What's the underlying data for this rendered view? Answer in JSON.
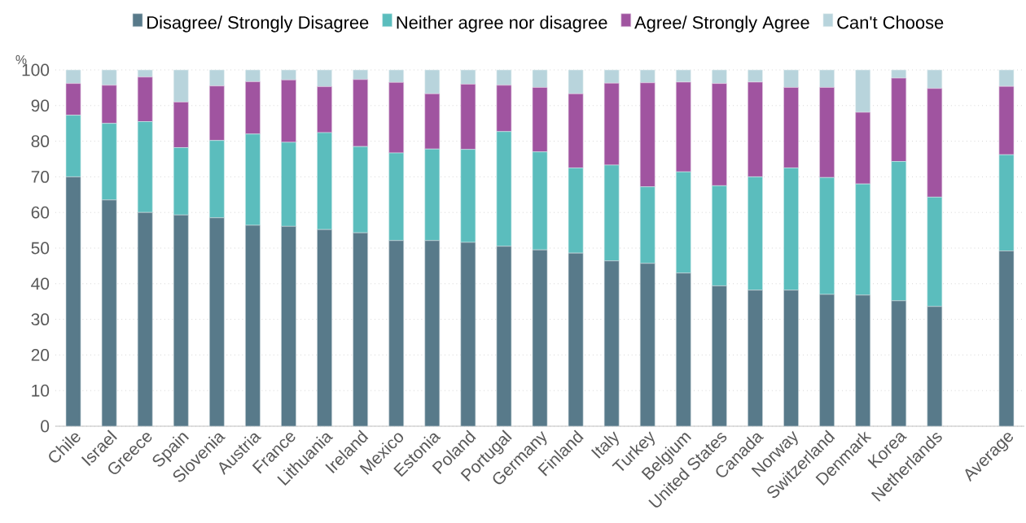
{
  "chart_data": {
    "type": "bar",
    "stacked": true,
    "ylabel": "%",
    "categories": [
      "Chile",
      "Israel",
      "Greece",
      "Spain",
      "Slovenia",
      "Austria",
      "France",
      "Lithuania",
      "Ireland",
      "Mexico",
      "Estonia",
      "Poland",
      "Portugal",
      "Germany",
      "Finland",
      "Italy",
      "Turkey",
      "Belgium",
      "United States",
      "Canada",
      "Norway",
      "Switzerland",
      "Denmark",
      "Korea",
      "Netherlands",
      null,
      "Average"
    ],
    "series": [
      {
        "name": "Disagree/ Strongly Disagree",
        "color": "#587a8a",
        "values": [
          70,
          63.5,
          60,
          59.3,
          58.5,
          56.4,
          56.1,
          55.2,
          54.3,
          52.1,
          52.1,
          51.6,
          50.5,
          49.5,
          48.6,
          46.4,
          45.7,
          43,
          39.4,
          38.2,
          38.2,
          37,
          36.8,
          35.2,
          33.6,
          null,
          49.2
        ]
      },
      {
        "name": "Neither agree nor disagree",
        "color": "#5bbdbd",
        "values": [
          17.3,
          21.5,
          25.5,
          18.9,
          21.7,
          25.6,
          23.6,
          27.2,
          24.2,
          24.6,
          25.7,
          26.1,
          32.2,
          27.5,
          23.9,
          26.9,
          21.5,
          28.4,
          28.1,
          31.8,
          34.3,
          32.8,
          31.2,
          39.1,
          30.7,
          null,
          27
        ]
      },
      {
        "name": "Agree/ Strongly Agree",
        "color": "#a054a0",
        "values": [
          8.9,
          10.7,
          12.5,
          12.8,
          15.3,
          14.7,
          17.5,
          12.9,
          18.8,
          19.8,
          15.5,
          18.3,
          13,
          18.1,
          20.8,
          23,
          29.2,
          25.2,
          28.7,
          26.6,
          22.6,
          25.3,
          20.1,
          23.4,
          30.5,
          null,
          19.2
        ]
      },
      {
        "name": "Can't Choose",
        "color": "#b8d4dc",
        "values": [
          3.8,
          4.3,
          2,
          9,
          4.5,
          3.3,
          2.8,
          4.7,
          2.7,
          3.5,
          6.7,
          4,
          4.3,
          4.9,
          6.7,
          3.7,
          3.6,
          3.4,
          3.8,
          3.4,
          4.9,
          4.9,
          11.9,
          2.3,
          5.2,
          null,
          4.6
        ]
      }
    ],
    "ylim": [
      0,
      100
    ],
    "yticks": [
      0,
      10,
      20,
      30,
      40,
      50,
      60,
      70,
      80,
      90,
      100
    ],
    "grid": "y",
    "legend": "top"
  }
}
